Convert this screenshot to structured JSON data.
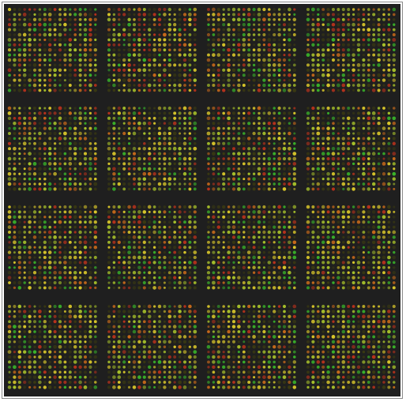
{
  "image": {
    "kind": "microarray-scan",
    "background_color": "#1f1f1f",
    "frame_color": "#8a8a8a",
    "grid": {
      "rows": 4,
      "cols": 4
    },
    "spot_palette": {
      "red": "#b8321c",
      "orange": "#c86a1a",
      "yellow": "#d8c62a",
      "yellow_green": "#a6c02a",
      "green": "#39b22a",
      "dim": "#3a3a12"
    }
  }
}
